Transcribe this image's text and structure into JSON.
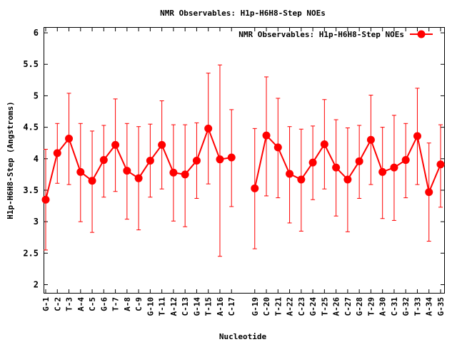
{
  "chart_data": {
    "type": "line",
    "title": "NMR Observables: H1p-H6H8-Step NOEs",
    "xlabel": "Nucleotide",
    "ylabel": "H1p-H6H8-Step (Angstroms)",
    "ylim": [
      1.87,
      6.08
    ],
    "yticks": [
      "2",
      "2.5",
      "3",
      "3.5",
      "4",
      "4.5",
      "5",
      "5.5",
      "6"
    ],
    "grid": false,
    "legend_position": "top-right",
    "colors": {
      "series": "#ff0000"
    },
    "categories": [
      "G-1",
      "C-2",
      "T-3",
      "A-4",
      "C-5",
      "G-6",
      "T-7",
      "A-8",
      "C-9",
      "G-10",
      "T-11",
      "A-12",
      "C-13",
      "G-14",
      "T-15",
      "A-16",
      "C-17",
      "",
      "G-19",
      "C-20",
      "T-21",
      "A-22",
      "C-23",
      "G-24",
      "T-25",
      "A-26",
      "C-27",
      "G-28",
      "T-29",
      "A-30",
      "C-31",
      "G-32",
      "T-33",
      "A-34",
      "G-35"
    ],
    "series": [
      {
        "name": "NMR Observables: H1p-H6H8-Step NOEs",
        "values": [
          3.35,
          4.09,
          4.32,
          3.79,
          3.65,
          3.98,
          4.22,
          3.81,
          3.69,
          3.97,
          4.22,
          3.78,
          3.75,
          3.97,
          4.48,
          3.99,
          4.02,
          null,
          3.53,
          4.37,
          4.18,
          3.76,
          3.67,
          3.94,
          4.23,
          3.86,
          3.67,
          3.96,
          4.3,
          3.79,
          3.86,
          3.98,
          4.36,
          3.47,
          3.91
        ],
        "error_low": [
          2.55,
          3.61,
          3.59,
          3.0,
          2.83,
          3.39,
          3.48,
          3.04,
          2.87,
          3.39,
          3.52,
          3.01,
          2.92,
          3.37,
          3.6,
          2.45,
          3.24,
          null,
          2.57,
          3.41,
          3.38,
          2.98,
          2.85,
          3.35,
          3.52,
          3.09,
          2.84,
          3.37,
          3.59,
          3.05,
          3.02,
          3.38,
          3.59,
          2.69,
          3.23
        ],
        "error_high": [
          4.15,
          4.56,
          5.04,
          4.56,
          4.44,
          4.53,
          4.95,
          4.56,
          4.51,
          4.55,
          4.92,
          4.54,
          4.54,
          4.57,
          5.36,
          5.49,
          4.78,
          null,
          4.48,
          5.3,
          4.96,
          4.51,
          4.47,
          4.52,
          4.94,
          4.62,
          4.49,
          4.53,
          5.01,
          4.5,
          4.69,
          4.56,
          5.12,
          4.25,
          4.54
        ]
      }
    ]
  }
}
